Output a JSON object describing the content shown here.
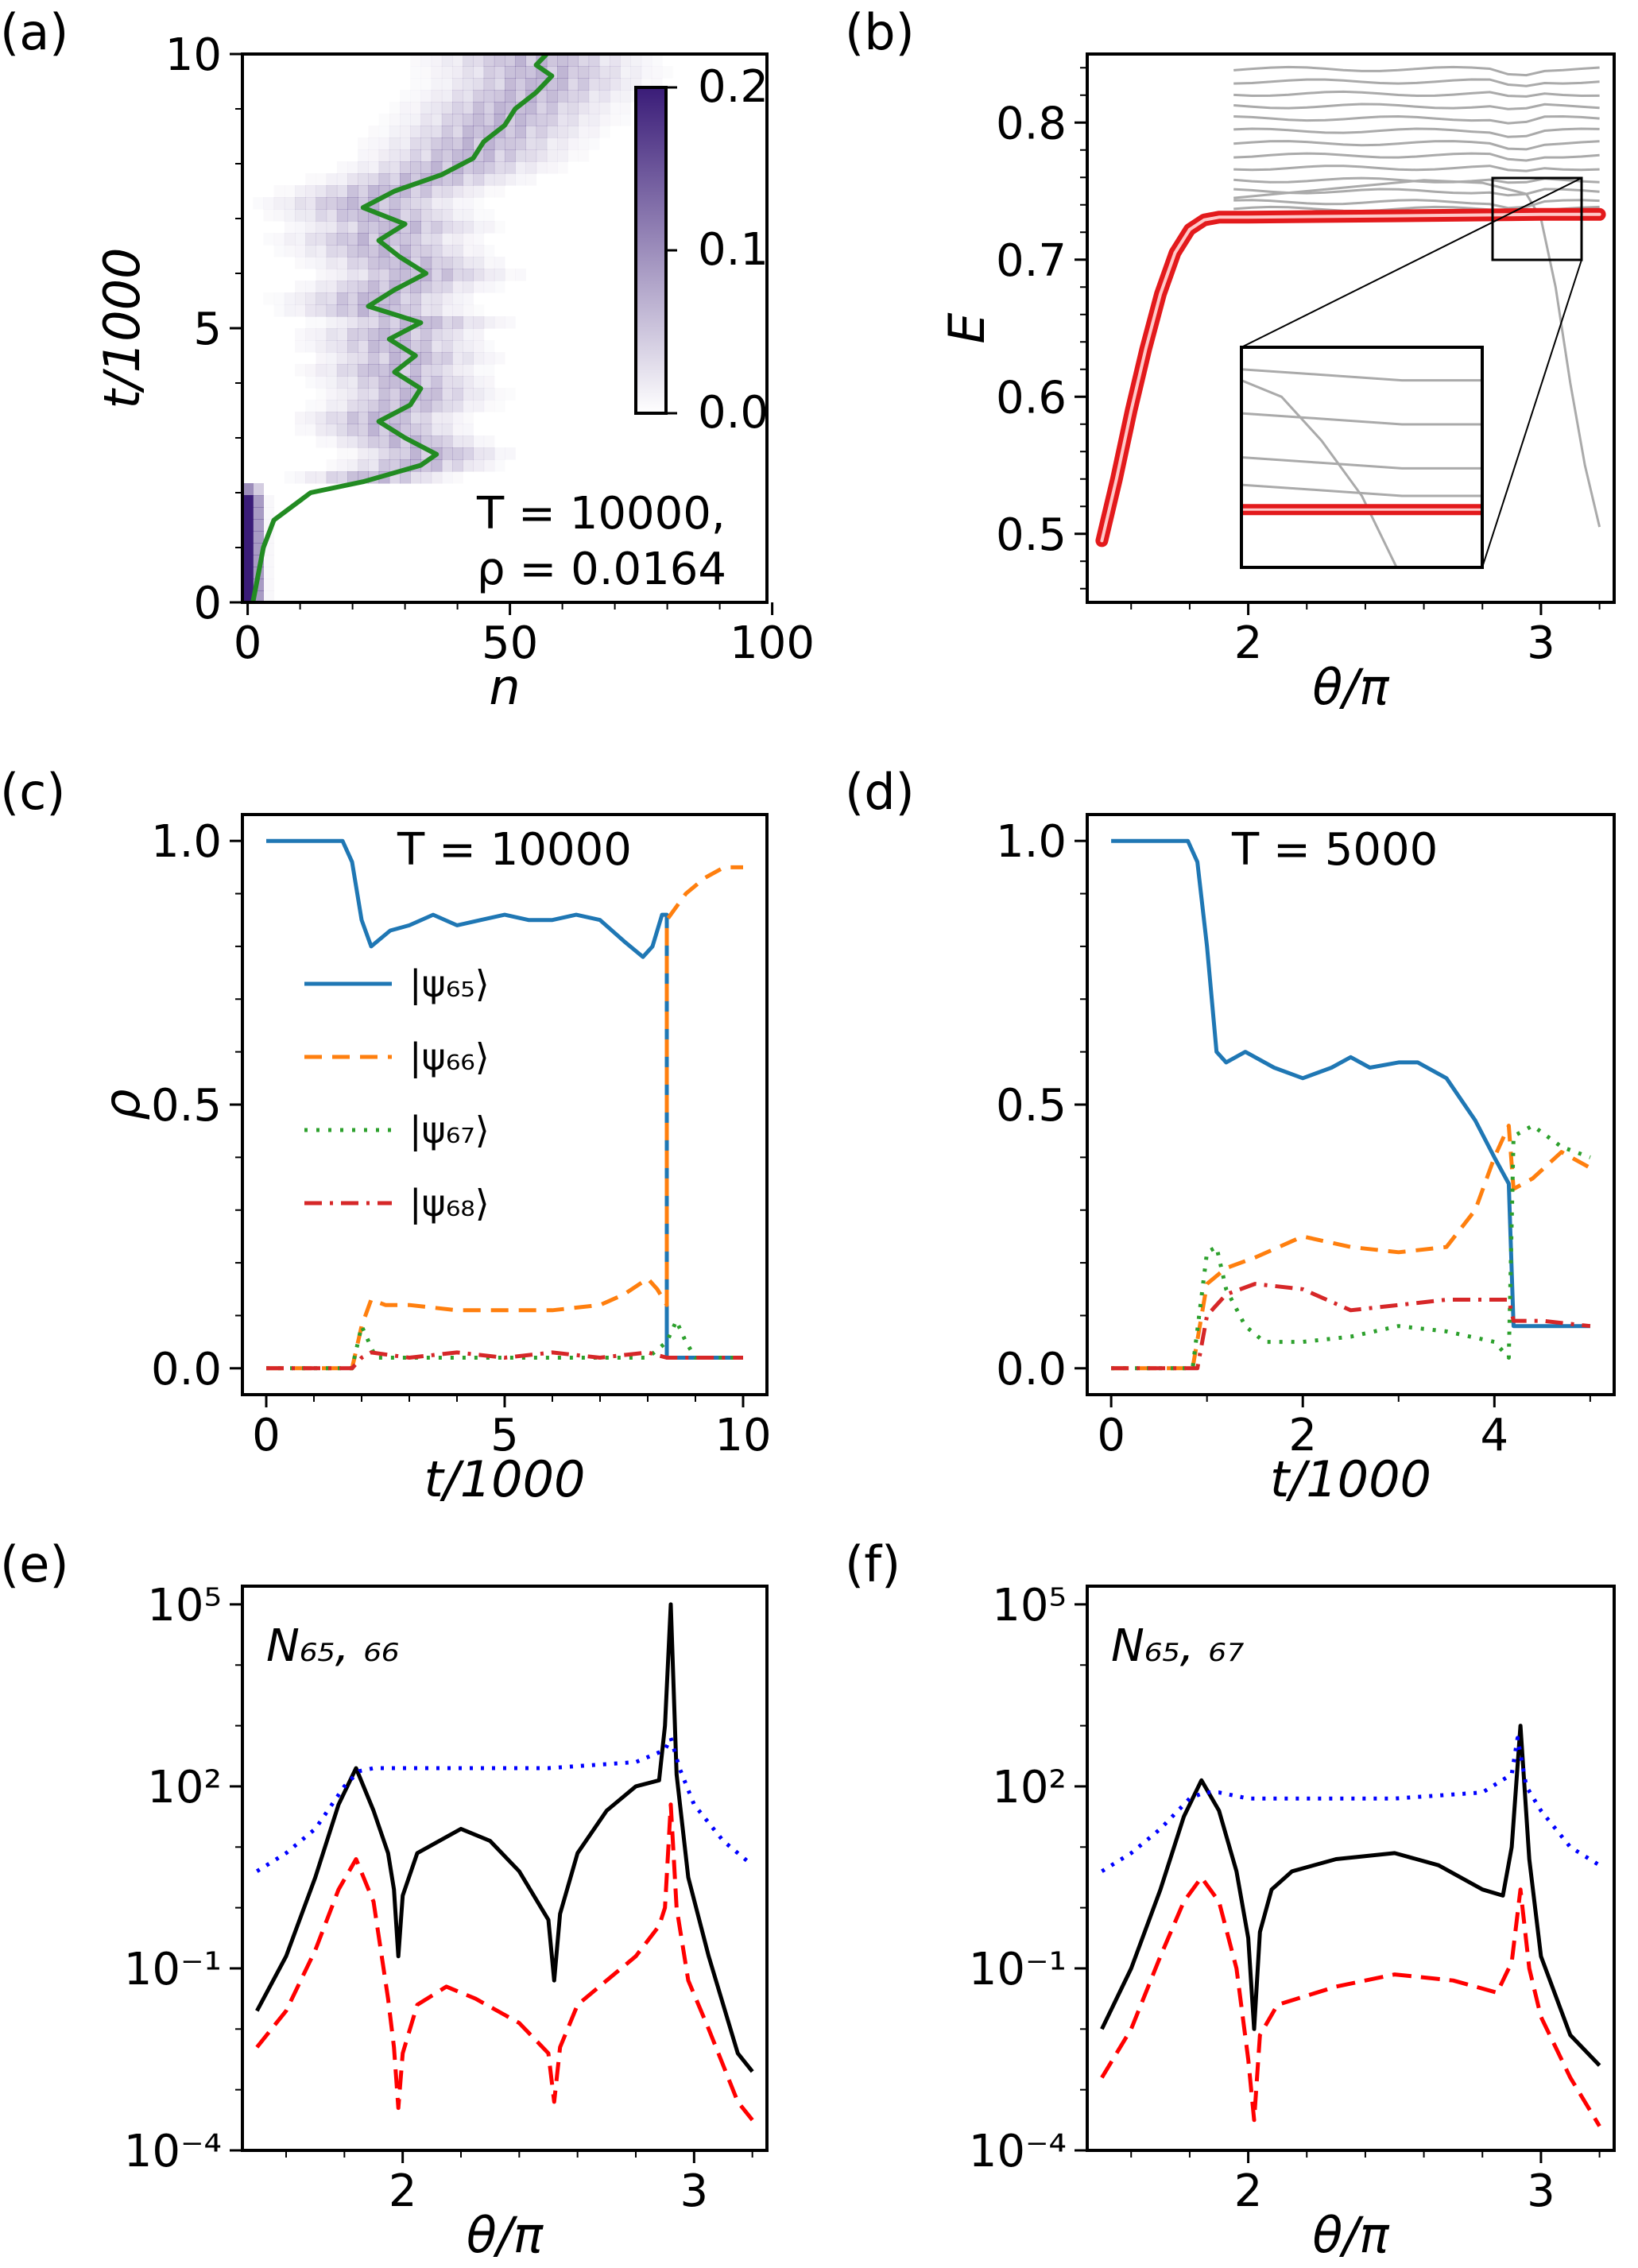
{
  "figure": {
    "panels": [
      {
        "id": "a",
        "label": "(a)"
      },
      {
        "id": "b",
        "label": "(b)"
      },
      {
        "id": "c",
        "label": "(c)"
      },
      {
        "id": "d",
        "label": "(d)"
      },
      {
        "id": "e",
        "label": "(e)"
      },
      {
        "id": "f",
        "label": "(f)"
      }
    ]
  },
  "chart_data": [
    {
      "panel": "a",
      "type": "heatmap",
      "xlabel": "n",
      "ylabel": "t/1000",
      "xlim": [
        0,
        100
      ],
      "ylim": [
        0,
        10
      ],
      "xticks": [
        "0",
        "50",
        "100"
      ],
      "yticks": [
        "0",
        "5",
        "10"
      ],
      "colorbar": {
        "range": [
          0.0,
          0.2
        ],
        "ticks": [
          "0.0",
          "0.1",
          "0.2"
        ],
        "colormap": "white-to-purple"
      },
      "annotation": [
        "T = 10000,",
        "ρ = 0.0164"
      ],
      "mean_position_line": {
        "color": "#228B22",
        "t": [
          0,
          0.5,
          1.0,
          1.5,
          2.0,
          2.2,
          2.5,
          2.7,
          3.0,
          3.3,
          3.6,
          3.9,
          4.2,
          4.5,
          4.8,
          5.1,
          5.4,
          5.7,
          6.0,
          6.3,
          6.6,
          6.9,
          7.2,
          7.5,
          7.8,
          8.1,
          8.4,
          8.7,
          9.0,
          9.3,
          9.6,
          9.8,
          10.0
        ],
        "n": [
          1,
          2,
          3,
          5,
          12,
          22,
          33,
          36,
          30,
          25,
          31,
          33,
          28,
          32,
          27,
          33,
          23,
          28,
          34,
          29,
          25,
          30,
          22,
          28,
          37,
          43,
          45,
          49,
          51,
          55,
          58,
          55,
          57
        ]
      }
    },
    {
      "panel": "b",
      "type": "line",
      "xlabel": "θ/π",
      "ylabel": "E",
      "xlim": [
        1.45,
        3.25
      ],
      "ylim": [
        0.45,
        0.85
      ],
      "xticks": [
        "2",
        "3"
      ],
      "yticks": [
        "0.5",
        "0.6",
        "0.7",
        "0.8"
      ],
      "highlighted_level": {
        "color": "#e31a1c",
        "x": [
          1.5,
          1.55,
          1.6,
          1.65,
          1.7,
          1.75,
          1.8,
          1.85,
          1.9,
          2.0,
          2.5,
          3.0,
          3.2
        ],
        "y": [
          0.495,
          0.54,
          0.59,
          0.635,
          0.675,
          0.705,
          0.722,
          0.729,
          0.731,
          0.731,
          0.732,
          0.733,
          0.733
        ]
      },
      "background_levels": {
        "color": "#aaaaaa",
        "x_start": 1.95,
        "x_end": 3.2,
        "y_levels": [
          0.737,
          0.742,
          0.75,
          0.758,
          0.767,
          0.776,
          0.785,
          0.794,
          0.803,
          0.812,
          0.821,
          0.83,
          0.839
        ]
      },
      "crossing_level": {
        "x": [
          1.95,
          2.3,
          2.6,
          2.8,
          2.95,
          3.0,
          3.05,
          3.1,
          3.15,
          3.2
        ],
        "y": [
          0.745,
          0.752,
          0.758,
          0.756,
          0.748,
          0.73,
          0.68,
          0.61,
          0.55,
          0.505
        ]
      },
      "inset": {
        "x_range": [
          2.8,
          3.1
        ],
        "y_range": [
          0.7,
          0.762
        ]
      }
    },
    {
      "panel": "c",
      "type": "line",
      "xlabel": "t/1000",
      "ylabel": "ρ",
      "xlim": [
        -0.5,
        10.5
      ],
      "ylim": [
        -0.05,
        1.05
      ],
      "xticks": [
        "0",
        "5",
        "10"
      ],
      "yticks": [
        "0.0",
        "0.5",
        "1.0"
      ],
      "annotation": "T = 10000",
      "legend": [
        "|ψ₆₅⟩",
        "|ψ₆₆⟩",
        "|ψ₆₇⟩",
        "|ψ₆₈⟩"
      ],
      "series": [
        {
          "name": "|ψ₆₅⟩",
          "color": "#1f77b4",
          "dash": "",
          "x": [
            0,
            1.6,
            1.8,
            2.0,
            2.2,
            2.6,
            3.0,
            3.5,
            4.0,
            4.5,
            5.0,
            5.5,
            6.0,
            6.5,
            7.0,
            7.5,
            7.9,
            8.1,
            8.3,
            8.4,
            8.4,
            10.0
          ],
          "y": [
            1.0,
            1.0,
            0.96,
            0.85,
            0.8,
            0.83,
            0.84,
            0.86,
            0.84,
            0.85,
            0.86,
            0.85,
            0.85,
            0.86,
            0.85,
            0.81,
            0.78,
            0.8,
            0.86,
            0.86,
            0.02,
            0.02
          ]
        },
        {
          "name": "|ψ₆₆⟩",
          "color": "#ff7f0e",
          "dash": "22,13",
          "x": [
            0,
            1.8,
            2.0,
            2.2,
            2.5,
            3.0,
            4.0,
            5.0,
            6.0,
            7.0,
            7.5,
            8.0,
            8.2,
            8.4,
            8.4,
            8.8,
            9.2,
            9.6,
            10.0
          ],
          "y": [
            0,
            0,
            0.08,
            0.13,
            0.12,
            0.12,
            0.11,
            0.11,
            0.11,
            0.12,
            0.14,
            0.17,
            0.15,
            0.12,
            0.85,
            0.9,
            0.93,
            0.95,
            0.95
          ]
        },
        {
          "name": "|ψ₆₇⟩",
          "color": "#2ca02c",
          "dash": "4,11",
          "x": [
            0,
            1.8,
            2.0,
            2.15,
            2.3,
            2.6,
            4.0,
            6.0,
            8.0,
            8.4,
            8.6,
            8.8,
            9.0,
            10.0
          ],
          "y": [
            0,
            0,
            0.08,
            0.05,
            0.02,
            0.02,
            0.02,
            0.02,
            0.02,
            0.05,
            0.09,
            0.05,
            0.02,
            0.02
          ]
        },
        {
          "name": "|ψ₆₈⟩",
          "color": "#d62728",
          "dash": "22,10,4,10",
          "x": [
            0,
            1.8,
            2.0,
            2.2,
            3.0,
            4.0,
            5.0,
            6.0,
            7.0,
            8.0,
            8.4,
            9.0,
            10.0
          ],
          "y": [
            0,
            0,
            0.02,
            0.03,
            0.02,
            0.03,
            0.02,
            0.03,
            0.02,
            0.03,
            0.02,
            0.02,
            0.02
          ]
        }
      ]
    },
    {
      "panel": "d",
      "type": "line",
      "xlabel": "t/1000",
      "ylabel": "",
      "xlim": [
        -0.25,
        5.25
      ],
      "ylim": [
        -0.05,
        1.05
      ],
      "xticks": [
        "0",
        "2",
        "4"
      ],
      "yticks": [
        "0.0",
        "0.5",
        "1.0"
      ],
      "annotation": "T = 5000",
      "series": [
        {
          "name": "|ψ₆₅⟩",
          "color": "#1f77b4",
          "dash": "",
          "x": [
            0,
            0.8,
            0.9,
            1.0,
            1.1,
            1.2,
            1.4,
            1.7,
            2.0,
            2.3,
            2.5,
            2.7,
            3.0,
            3.2,
            3.5,
            3.8,
            4.0,
            4.15,
            4.2,
            5.0
          ],
          "y": [
            1.0,
            1.0,
            0.96,
            0.8,
            0.6,
            0.58,
            0.6,
            0.57,
            0.55,
            0.57,
            0.59,
            0.57,
            0.58,
            0.58,
            0.55,
            0.47,
            0.4,
            0.35,
            0.08,
            0.08
          ]
        },
        {
          "name": "|ψ₆₆⟩",
          "color": "#ff7f0e",
          "dash": "22,13",
          "x": [
            0,
            0.85,
            1.0,
            1.2,
            1.5,
            2.0,
            2.5,
            3.0,
            3.5,
            3.8,
            4.0,
            4.15,
            4.2,
            4.4,
            4.7,
            5.0
          ],
          "y": [
            0,
            0,
            0.16,
            0.19,
            0.21,
            0.25,
            0.23,
            0.22,
            0.23,
            0.3,
            0.4,
            0.46,
            0.34,
            0.36,
            0.41,
            0.38
          ]
        },
        {
          "name": "|ψ₆₇⟩",
          "color": "#2ca02c",
          "dash": "4,11",
          "x": [
            0,
            0.85,
            1.0,
            1.1,
            1.2,
            1.4,
            1.6,
            2.0,
            2.5,
            3.0,
            3.5,
            4.0,
            4.15,
            4.2,
            4.4,
            4.7,
            5.0
          ],
          "y": [
            0,
            0,
            0.22,
            0.23,
            0.15,
            0.08,
            0.05,
            0.05,
            0.06,
            0.08,
            0.07,
            0.05,
            0.02,
            0.44,
            0.46,
            0.42,
            0.4
          ]
        },
        {
          "name": "|ψ₆₈⟩",
          "color": "#d62728",
          "dash": "22,10,4,10",
          "x": [
            0,
            0.9,
            1.0,
            1.2,
            1.5,
            2.0,
            2.5,
            3.0,
            3.5,
            4.0,
            4.15,
            4.2,
            4.5,
            5.0
          ],
          "y": [
            0,
            0,
            0.1,
            0.14,
            0.16,
            0.15,
            0.11,
            0.12,
            0.13,
            0.13,
            0.13,
            0.09,
            0.09,
            0.08
          ]
        }
      ]
    },
    {
      "panel": "e",
      "type": "line",
      "yscale": "log",
      "xlabel": "θ/π",
      "ylabel": "",
      "xlim": [
        1.45,
        3.25
      ],
      "ylim_log10": [
        -4,
        5.3
      ],
      "xticks": [
        "2",
        "3"
      ],
      "yticks": [
        "10⁻⁴",
        "10⁻¹",
        "10²",
        "10⁵"
      ],
      "annotation": "N₆₅, ₆₆",
      "series": [
        {
          "name": "black-solid",
          "color": "#000000",
          "dash": "",
          "x": [
            1.5,
            1.6,
            1.7,
            1.78,
            1.84,
            1.9,
            1.95,
            1.97,
            1.985,
            2.0,
            2.05,
            2.2,
            2.3,
            2.4,
            2.5,
            2.52,
            2.54,
            2.6,
            2.7,
            2.8,
            2.88,
            2.9,
            2.92,
            2.94,
            2.98,
            3.05,
            3.15,
            3.2
          ],
          "y_log10": [
            -1.7,
            -0.8,
            0.5,
            1.7,
            2.3,
            1.6,
            0.9,
            0.3,
            -0.8,
            0.2,
            0.9,
            1.3,
            1.1,
            0.6,
            -0.2,
            -1.2,
            -0.1,
            0.9,
            1.6,
            2.0,
            2.1,
            3.0,
            5.0,
            2.2,
            0.5,
            -0.8,
            -2.4,
            -2.7
          ]
        },
        {
          "name": "red-dashed",
          "color": "#ff0000",
          "dash": "24,12",
          "x": [
            1.5,
            1.6,
            1.7,
            1.78,
            1.84,
            1.9,
            1.95,
            1.97,
            1.985,
            2.0,
            2.05,
            2.15,
            2.25,
            2.4,
            2.5,
            2.52,
            2.54,
            2.6,
            2.7,
            2.8,
            2.88,
            2.9,
            2.92,
            2.94,
            2.98,
            3.05,
            3.15,
            3.2
          ],
          "y_log10": [
            -2.3,
            -1.7,
            -0.7,
            0.3,
            0.8,
            0.1,
            -1.5,
            -2.3,
            -3.3,
            -2.4,
            -1.6,
            -1.3,
            -1.5,
            -1.9,
            -2.4,
            -3.2,
            -2.3,
            -1.6,
            -1.2,
            -0.8,
            -0.3,
            0.0,
            1.7,
            0.0,
            -1.2,
            -2.0,
            -3.2,
            -3.5
          ]
        },
        {
          "name": "blue-dotted",
          "color": "#0000ff",
          "dash": "4,10",
          "x": [
            1.5,
            1.6,
            1.7,
            1.8,
            1.85,
            1.9,
            2.0,
            2.5,
            2.8,
            2.9,
            2.92,
            2.95,
            3.0,
            3.1,
            3.2
          ],
          "y_log10": [
            0.6,
            0.9,
            1.3,
            2.0,
            2.25,
            2.3,
            2.3,
            2.3,
            2.4,
            2.6,
            2.8,
            2.3,
            1.7,
            1.1,
            0.7
          ]
        }
      ]
    },
    {
      "panel": "f",
      "type": "line",
      "yscale": "log",
      "xlabel": "θ/π",
      "ylabel": "",
      "xlim": [
        1.45,
        3.25
      ],
      "ylim_log10": [
        -4,
        5.3
      ],
      "xticks": [
        "2",
        "3"
      ],
      "yticks": [
        "10⁻⁴",
        "10⁻¹",
        "10²",
        "10⁵"
      ],
      "annotation": "N₆₅, ₆₇",
      "series": [
        {
          "name": "black-solid",
          "color": "#000000",
          "dash": "",
          "x": [
            1.5,
            1.6,
            1.7,
            1.78,
            1.84,
            1.9,
            1.96,
            2.0,
            2.02,
            2.04,
            2.08,
            2.15,
            2.3,
            2.5,
            2.65,
            2.8,
            2.87,
            2.9,
            2.93,
            2.96,
            3.0,
            3.1,
            3.2
          ],
          "y_log10": [
            -2.0,
            -1.0,
            0.3,
            1.5,
            2.1,
            1.6,
            0.6,
            -0.5,
            -2.0,
            -0.4,
            0.3,
            0.6,
            0.8,
            0.9,
            0.7,
            0.3,
            0.2,
            1.0,
            3.0,
            0.8,
            -0.8,
            -2.1,
            -2.6
          ]
        },
        {
          "name": "red-dashed",
          "color": "#ff0000",
          "dash": "24,12",
          "x": [
            1.5,
            1.6,
            1.7,
            1.78,
            1.84,
            1.9,
            1.96,
            2.0,
            2.02,
            2.04,
            2.1,
            2.3,
            2.5,
            2.7,
            2.85,
            2.9,
            2.93,
            2.96,
            3.0,
            3.1,
            3.2
          ],
          "y_log10": [
            -2.8,
            -2.0,
            -0.8,
            0.1,
            0.5,
            0.1,
            -1.0,
            -2.5,
            -3.5,
            -2.1,
            -1.6,
            -1.3,
            -1.1,
            -1.2,
            -1.4,
            -0.9,
            0.3,
            -1.0,
            -1.8,
            -2.8,
            -3.6
          ]
        },
        {
          "name": "blue-dotted",
          "color": "#0000ff",
          "dash": "4,10",
          "x": [
            1.5,
            1.6,
            1.7,
            1.8,
            1.85,
            1.9,
            2.0,
            2.5,
            2.8,
            2.9,
            2.92,
            2.95,
            3.0,
            3.1,
            3.2
          ],
          "y_log10": [
            0.6,
            0.9,
            1.3,
            1.8,
            1.9,
            1.9,
            1.8,
            1.8,
            1.9,
            2.2,
            2.8,
            2.0,
            1.6,
            1.0,
            0.7
          ]
        }
      ]
    }
  ]
}
